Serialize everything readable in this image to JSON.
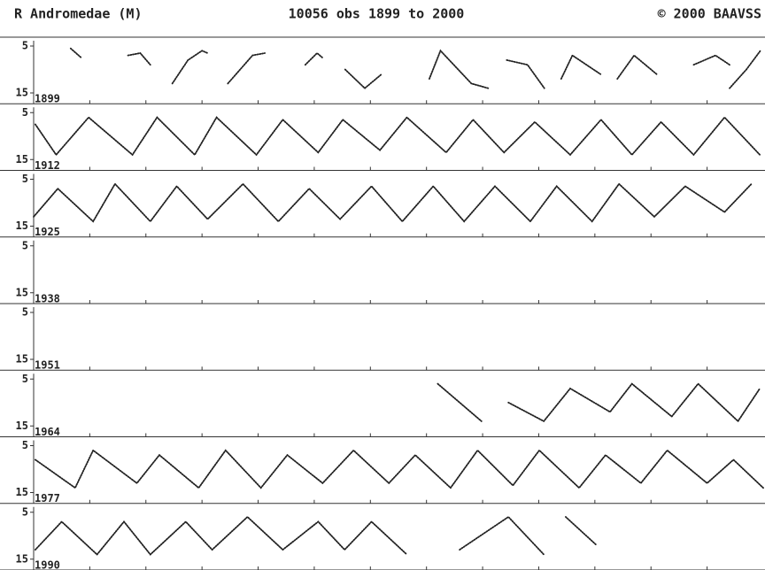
{
  "header": {
    "title": "R Andromedae (M)",
    "subtitle": "10056 obs 1899 to 2000",
    "credit": "© 2000 BAAVSS"
  },
  "chart_data": [
    {
      "type": "line",
      "label": "1899",
      "xlim": [
        1899,
        1912
      ],
      "ylim": [
        15,
        5
      ],
      "yticks": [
        5,
        15
      ],
      "xticks": [
        1900,
        1901,
        1902,
        1903,
        1904,
        1905,
        1906,
        1907,
        1908,
        1909,
        1910,
        1911
      ],
      "series": [
        {
          "color": "#222222",
          "x": [
            1899.66,
            1899.85,
            null,
            1900.68,
            1900.9,
            1901.08,
            null,
            1901.47,
            1901.75,
            1902.0,
            1902.1,
            null,
            1902.46,
            1902.9,
            1903.12,
            null,
            1903.84,
            1904.05,
            1904.15,
            null,
            1904.55,
            1904.9,
            1905.2,
            null,
            1906.05,
            1906.25,
            1906.8,
            1907.1,
            null,
            1907.43,
            1907.8,
            1908.1,
            null,
            1908.4,
            1908.6,
            1909.1,
            null,
            1909.4,
            1909.7,
            1910.1,
            null,
            1910.76,
            1911.15,
            1911.4,
            null,
            1911.4,
            1911.7,
            1911.95
          ],
          "values": [
            5.5,
            7.5,
            null,
            7,
            6.5,
            9,
            null,
            13,
            8,
            6,
            6.5,
            null,
            13,
            7,
            6.5,
            null,
            9,
            6.5,
            7.5,
            null,
            10,
            14,
            11,
            null,
            12,
            6,
            13,
            14,
            null,
            8,
            9,
            14,
            null,
            12,
            7,
            11,
            null,
            12,
            7,
            11,
            null,
            9,
            7,
            9,
            null,
            14,
            10,
            6
          ]
        }
      ]
    },
    {
      "type": "line",
      "label": "1912",
      "xlim": [
        1912,
        1925
      ],
      "ylim": [
        15,
        5
      ],
      "yticks": [
        5,
        15
      ],
      "xticks": [
        1913,
        1914,
        1915,
        1916,
        1917,
        1918,
        1919,
        1920,
        1921,
        1922,
        1923,
        1924
      ],
      "series": [
        {
          "color": "#222222",
          "x": [
            1912.03,
            1912.4,
            1912.98,
            1913.76,
            1914.2,
            1914.87,
            1915.26,
            1915.97,
            1916.44,
            1917.07,
            1917.51,
            1918.17,
            1918.65,
            1919.35,
            1919.83,
            1920.38,
            1920.93,
            1921.56,
            1922.11,
            1922.66,
            1923.18,
            1923.76,
            1924.31,
            1924.94
          ],
          "values": [
            7.5,
            14,
            6,
            14,
            6,
            14,
            6,
            14,
            6.5,
            13.5,
            6.5,
            13,
            6,
            13.5,
            6.5,
            13.5,
            7,
            14,
            6.5,
            14,
            7,
            14,
            6,
            14
          ]
        }
      ]
    },
    {
      "type": "line",
      "label": "1925",
      "xlim": [
        1925,
        1938
      ],
      "ylim": [
        15,
        5
      ],
      "yticks": [
        5,
        15
      ],
      "xticks": [
        1926,
        1927,
        1928,
        1929,
        1930,
        1931,
        1932,
        1933,
        1934,
        1935,
        1936,
        1937
      ],
      "series": [
        {
          "color": "#222222",
          "x": [
            1925.0,
            1925.43,
            1926.06,
            1926.45,
            1927.08,
            1927.55,
            1928.1,
            1928.73,
            1929.36,
            1929.91,
            1930.46,
            1931.02,
            1931.57,
            1932.12,
            1932.67,
            1933.22,
            1933.85,
            1934.32,
            1934.95,
            1935.43,
            1936.06,
            1936.61,
            1937.31,
            1937.79
          ],
          "values": [
            13,
            7,
            14,
            6,
            14,
            6.5,
            13.5,
            6,
            14,
            7,
            13.5,
            6.5,
            14,
            6.5,
            14,
            6.5,
            14,
            6.5,
            14,
            6,
            13,
            6.5,
            12,
            6
          ]
        }
      ]
    },
    {
      "type": "line",
      "label": "1938",
      "xlim": [
        1938,
        1951
      ],
      "ylim": [
        15,
        5
      ],
      "yticks": [
        5,
        15
      ],
      "xticks": [
        1939,
        1940,
        1941,
        1942,
        1943,
        1944,
        1945,
        1946,
        1947,
        1948,
        1949,
        1950
      ]
    },
    {
      "type": "line",
      "label": "1951",
      "xlim": [
        1951,
        1964
      ],
      "ylim": [
        15,
        5
      ],
      "yticks": [
        5,
        15
      ],
      "xticks": [
        1952,
        1953,
        1954,
        1955,
        1956,
        1957,
        1958,
        1959,
        1960,
        1961,
        1962,
        1963
      ]
    },
    {
      "type": "line",
      "label": "1964",
      "xlim": [
        1964,
        1977
      ],
      "ylim": [
        15,
        5
      ],
      "yticks": [
        5,
        15
      ],
      "xticks": [
        1965,
        1966,
        1967,
        1968,
        1969,
        1970,
        1971,
        1972,
        1973,
        1974,
        1975,
        1976
      ],
      "series": [
        {
          "color": "#222222",
          "x": [
            1971.2,
            1971.98,
            null,
            1972.46,
            1973.09,
            1973.56,
            1974.27,
            1974.66,
            1975.37,
            1975.84,
            1976.55,
            1976.94
          ],
          "values": [
            6,
            14,
            null,
            10,
            14,
            7,
            12,
            6,
            13,
            6,
            14,
            7
          ]
        }
      ]
    },
    {
      "type": "line",
      "label": "1977",
      "xlim": [
        1977,
        1990
      ],
      "ylim": [
        15,
        5
      ],
      "yticks": [
        5,
        15
      ],
      "xticks": [
        1978,
        1979,
        1980,
        1981,
        1982,
        1983,
        1984,
        1985,
        1986,
        1987,
        1988,
        1989
      ],
      "series": [
        {
          "color": "#222222",
          "x": [
            1977.03,
            1977.74,
            1978.06,
            1978.84,
            1979.24,
            1979.94,
            1980.42,
            1981.05,
            1981.52,
            1982.15,
            1982.7,
            1983.33,
            1983.8,
            1984.43,
            1984.91,
            1985.54,
            1986.01,
            1986.72,
            1987.19,
            1987.82,
            1988.29,
            1989.0,
            1989.47,
            1990.0
          ],
          "values": [
            8,
            14,
            6,
            13,
            7,
            14,
            6,
            14,
            7,
            13,
            6,
            13,
            7,
            14,
            6,
            13.5,
            6,
            14,
            7,
            13,
            6,
            13,
            8,
            14
          ]
        }
      ]
    },
    {
      "type": "line",
      "label": "1990",
      "xlim": [
        1990,
        2003
      ],
      "ylim": [
        15,
        5
      ],
      "yticks": [
        5,
        15
      ],
      "xticks": [
        1991,
        1992,
        1993,
        1994,
        1995,
        1996,
        1997,
        1998,
        1999,
        2000,
        2001,
        2002
      ],
      "series": [
        {
          "color": "#222222",
          "x": [
            1990.03,
            1990.5,
            1991.13,
            1991.61,
            1992.08,
            1992.71,
            1993.18,
            1993.81,
            1994.44,
            1995.07,
            1995.54,
            1996.02,
            1996.65,
            null,
            1997.59,
            1998.46,
            1999.09,
            null,
            1999.48,
            2000.03
          ],
          "values": [
            13,
            7,
            14,
            7,
            14,
            7,
            13,
            6,
            13,
            7,
            13,
            7,
            14,
            null,
            13,
            6,
            14,
            null,
            6,
            12
          ]
        }
      ]
    }
  ]
}
